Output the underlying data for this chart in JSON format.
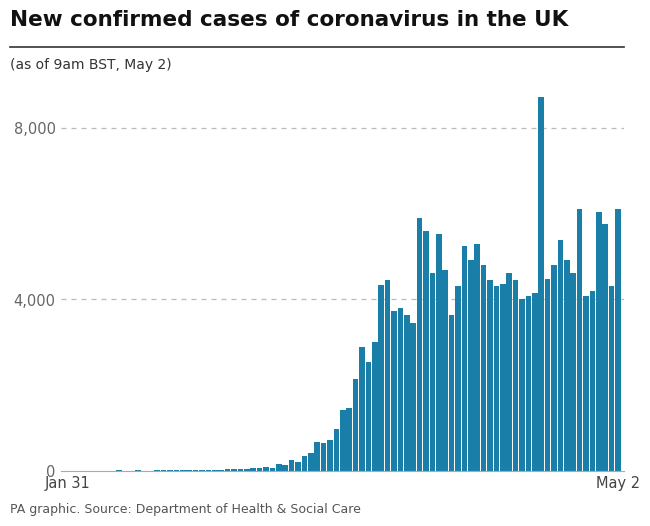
{
  "title": "New confirmed cases of coronavirus in the UK",
  "subtitle": "(as of 9am BST, May 2)",
  "caption": "PA graphic. Source: Department of Health & Social Care",
  "xlabel_left": "Jan 31",
  "xlabel_right": "May 2",
  "yticks": [
    0,
    4000,
    8000
  ],
  "ylim": [
    0,
    9200
  ],
  "bar_color": "#1a7fa8",
  "background_color": "#ffffff",
  "title_line_color": "#333333",
  "values": [
    2,
    1,
    0,
    3,
    0,
    2,
    3,
    2,
    5,
    3,
    2,
    8,
    4,
    2,
    9,
    8,
    5,
    10,
    10,
    5,
    8,
    13,
    14,
    17,
    12,
    48,
    29,
    48,
    45,
    69,
    67,
    77,
    60,
    152,
    143,
    251,
    209,
    342,
    407,
    676,
    643,
    714,
    967,
    1427,
    1452,
    2129,
    2885,
    2546,
    3009,
    4324,
    4450,
    3735,
    3802,
    3634,
    3447,
    5903,
    5599,
    4617,
    5525,
    4676,
    3634,
    4301,
    5252,
    4913,
    5288,
    4806,
    4451,
    4309,
    4344,
    4603,
    4451,
    3996,
    4076,
    4134,
    8719,
    4463,
    4800,
    5386,
    4913,
    4615,
    6111,
    4076,
    4188,
    6032,
    5765,
    4301,
    6111
  ]
}
